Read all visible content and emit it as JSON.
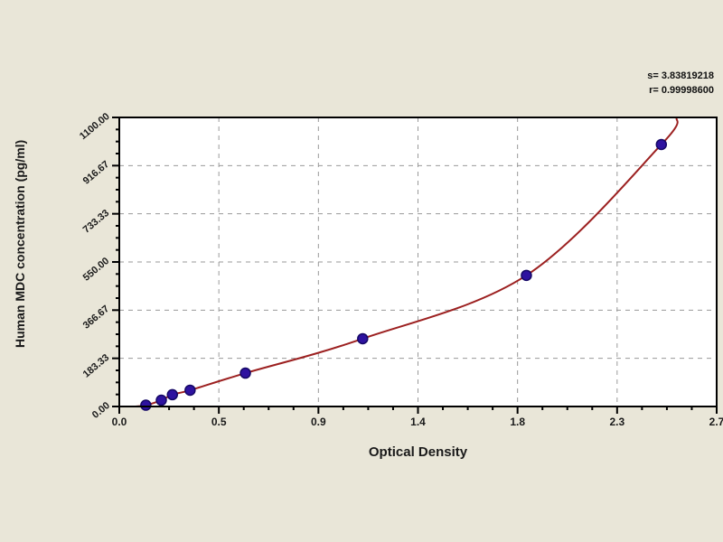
{
  "annotation": {
    "s_line": "s= 3.83819218",
    "r_line": "r= 0.99998600"
  },
  "chart_data": {
    "type": "scatter",
    "title": "",
    "xlabel": "Optical Density",
    "ylabel": "Human MDC concentration (pg/ml)",
    "xlim": [
      0,
      2.7
    ],
    "ylim": [
      0,
      1100
    ],
    "x_ticks": [
      "0.0",
      "0.5",
      "0.9",
      "1.4",
      "1.8",
      "2.3",
      "2.7"
    ],
    "y_ticks": [
      "0.00",
      "183.33",
      "366.67",
      "550.00",
      "733.33",
      "916.67",
      "1100.00"
    ],
    "minor_ticks_per_major": 4,
    "grid": "dashed at major ticks, both axes",
    "legend": "none",
    "points": [
      {
        "x": 0.12,
        "y": 5
      },
      {
        "x": 0.19,
        "y": 24
      },
      {
        "x": 0.24,
        "y": 45
      },
      {
        "x": 0.32,
        "y": 62
      },
      {
        "x": 0.57,
        "y": 127
      },
      {
        "x": 1.1,
        "y": 258
      },
      {
        "x": 1.84,
        "y": 499
      },
      {
        "x": 2.45,
        "y": 997
      }
    ],
    "curve_fit": {
      "starts_at": [
        0.07,
        0
      ],
      "extends_to": [
        2.52,
        1100
      ]
    },
    "marker": {
      "shape": "circle",
      "radius": 5.5,
      "color": "#2e12a0",
      "edge": "#150866"
    },
    "colors": {
      "background": "#e9e6d8",
      "plot_bg": "#ffffff",
      "frame": "#000000",
      "grid": "#9a9a9a",
      "curve": "#9c2020",
      "text": "#1a1a1a"
    }
  }
}
